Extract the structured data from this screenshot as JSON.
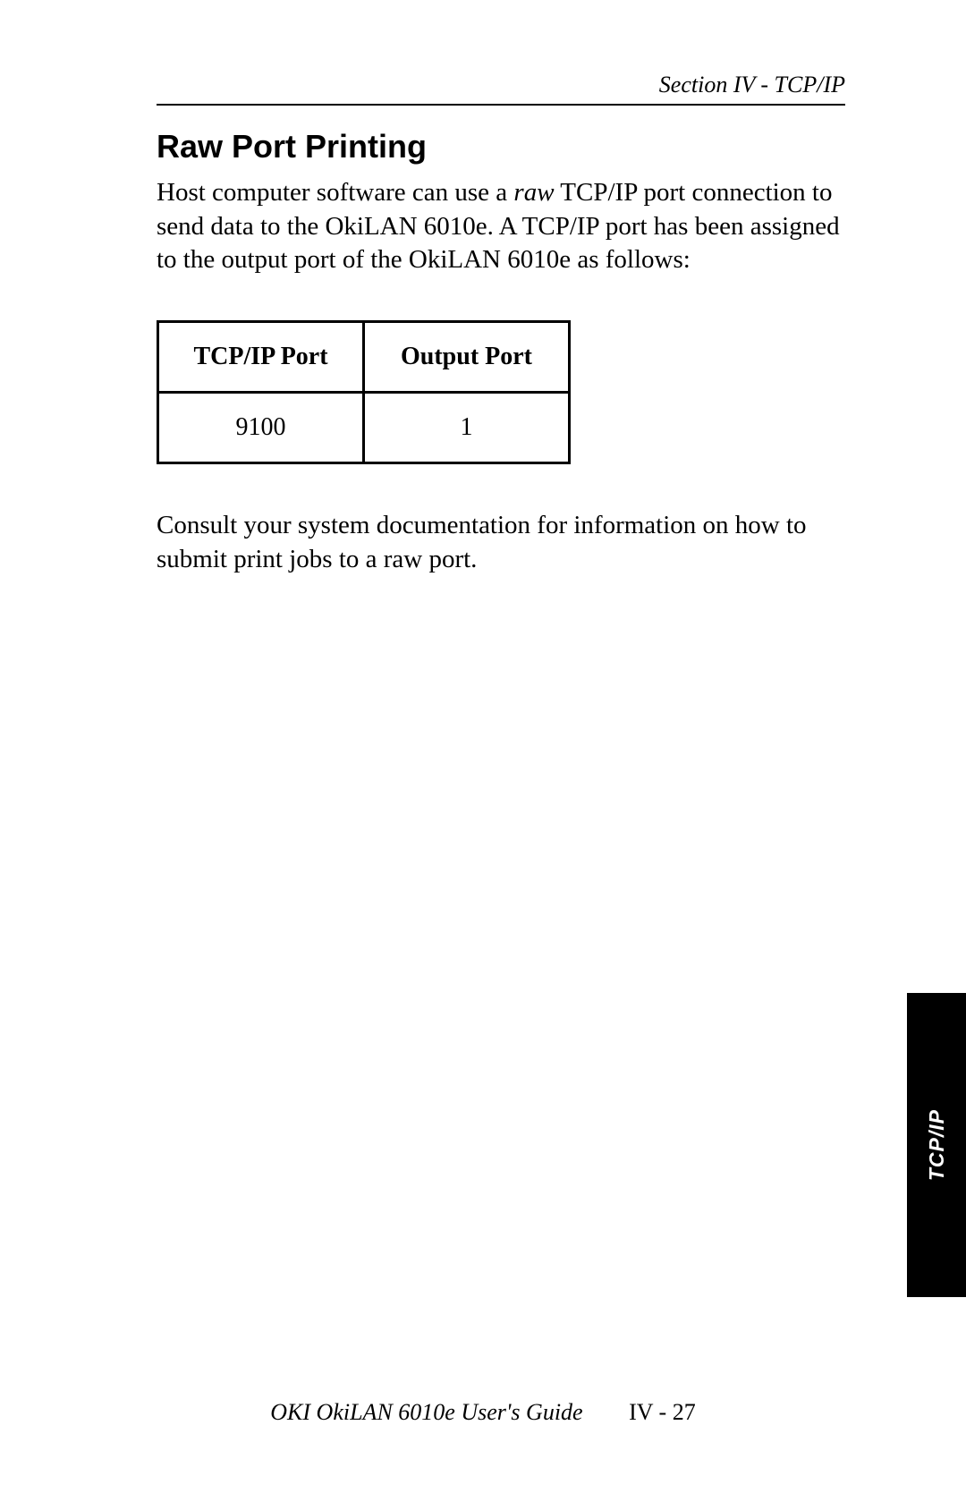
{
  "header": {
    "section_label": "Section IV - TCP/IP"
  },
  "content": {
    "heading": "Raw Port Printing",
    "paragraph1_part1": "Host computer software can use a ",
    "paragraph1_italic": "raw",
    "paragraph1_part2": " TCP/IP port connection to send data to the OkiLAN 6010e. A TCP/IP port has been assigned to the output port of the OkiLAN 6010e as follows:",
    "paragraph2": "Consult your system documentation for information on how to submit print jobs to a raw port."
  },
  "port_table": {
    "columns": [
      "TCP/IP Port",
      "Output Port"
    ],
    "rows": [
      [
        "9100",
        "1"
      ]
    ],
    "border_color": "#000000",
    "header_fontweight": "bold",
    "cell_align": "center"
  },
  "side_tab": {
    "label": "TCP/IP",
    "background_color": "#000000",
    "text_color": "#ffffff"
  },
  "footer": {
    "guide_title": "OKI OkiLAN 6010e User's Guide",
    "page_number": "IV - 27"
  },
  "colors": {
    "page_background": "#ffffff",
    "text": "#000000"
  }
}
